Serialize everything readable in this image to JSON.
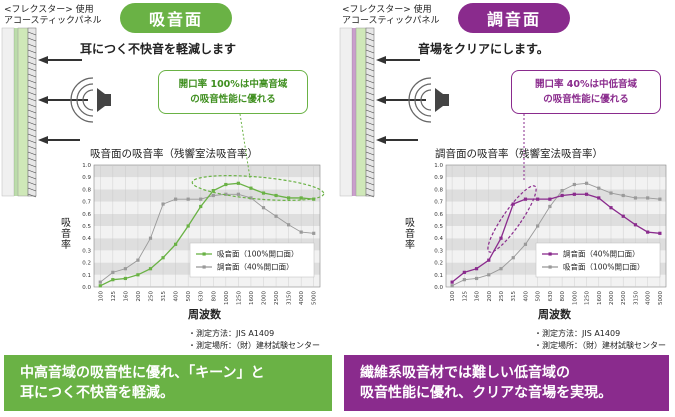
{
  "left": {
    "panel_label": "<フレクスター> 使用\nアコースティックパネル",
    "badge": "吸音面",
    "subhead": "耳につく不快音を軽減します",
    "callout": "開口率 100%は中高音域\nの吸音性能に優れる",
    "chart_title": "吸音面の吸音率（残響室法吸音率）",
    "ylabel": "吸音率",
    "xlabel": "周波数",
    "notes": [
      "・測定方法：JIS A1409",
      "・測定場所：（財）建材試験センター"
    ],
    "footer": "中高音域の吸音性に優れ、「キーン」と\n耳につく不快音を軽減。"
  },
  "right": {
    "panel_label": "<フレクスター> 使用\nアコースティックパネル",
    "badge": "調音面",
    "subhead": "音場をクリアにします。",
    "callout": "開口率 40%は中低音域\nの吸音性能に優れる",
    "chart_title": "調音面の吸音率（残響室法吸音率）",
    "ylabel": "吸音率",
    "xlabel": "周波数",
    "notes": [
      "・測定方法：JIS A1409",
      "・測定場所：（財）建材試験センター"
    ],
    "footer": "繊維系吸音材では難しい低音域の\n吸音性能に優れ、クリアな音場を実現。"
  },
  "colors": {
    "green": "#6ab245",
    "purple": "#8a2b8d",
    "gray": "#9a9a9a"
  },
  "chart_data": [
    {
      "type": "line",
      "title": "吸音面の吸音率（残響室法吸音率）",
      "xlabel": "周波数",
      "ylabel": "吸音率",
      "categories": [
        "100",
        "125",
        "160",
        "200",
        "250",
        "315",
        "400",
        "500",
        "630",
        "800",
        "1000",
        "1250",
        "1600",
        "2000",
        "2500",
        "3150",
        "4000",
        "5000"
      ],
      "ylim": [
        0,
        1.0
      ],
      "yticks": [
        "0.0",
        "0.1",
        "0.2",
        "0.3",
        "0.4",
        "0.5",
        "0.6",
        "0.7",
        "0.8",
        "0.9",
        "1.0"
      ],
      "grid": true,
      "legend_position": "bottom-right",
      "series": [
        {
          "name": "吸音面（100%開口面）",
          "color": "#6ab245",
          "values": [
            0.01,
            0.06,
            0.07,
            0.1,
            0.15,
            0.24,
            0.35,
            0.5,
            0.66,
            0.79,
            0.84,
            0.85,
            0.81,
            0.77,
            0.75,
            0.73,
            0.73,
            0.72
          ]
        },
        {
          "name": "調音面（40%開口面）",
          "color": "#9a9a9a",
          "values": [
            0.04,
            0.12,
            0.15,
            0.22,
            0.4,
            0.68,
            0.72,
            0.72,
            0.72,
            0.75,
            0.76,
            0.76,
            0.73,
            0.65,
            0.58,
            0.51,
            0.45,
            0.44
          ]
        }
      ]
    },
    {
      "type": "line",
      "title": "調音面の吸音率（残響室法吸音率）",
      "xlabel": "周波数",
      "ylabel": "吸音率",
      "categories": [
        "100",
        "125",
        "160",
        "200",
        "250",
        "315",
        "400",
        "500",
        "630",
        "800",
        "1000",
        "1250",
        "1600",
        "2000",
        "2500",
        "3150",
        "4000",
        "5000"
      ],
      "ylim": [
        0,
        1.0
      ],
      "yticks": [
        "0.0",
        "0.1",
        "0.2",
        "0.3",
        "0.4",
        "0.5",
        "0.6",
        "0.7",
        "0.8",
        "0.9",
        "1.0"
      ],
      "grid": true,
      "legend_position": "bottom-right",
      "series": [
        {
          "name": "調音面（40%開口面）",
          "color": "#8a2b8d",
          "values": [
            0.04,
            0.12,
            0.15,
            0.22,
            0.4,
            0.68,
            0.72,
            0.72,
            0.72,
            0.75,
            0.76,
            0.76,
            0.73,
            0.65,
            0.58,
            0.51,
            0.45,
            0.44
          ]
        },
        {
          "name": "吸音面（100%開口面）",
          "color": "#9a9a9a",
          "values": [
            0.01,
            0.06,
            0.07,
            0.1,
            0.15,
            0.24,
            0.35,
            0.5,
            0.66,
            0.79,
            0.84,
            0.85,
            0.81,
            0.77,
            0.75,
            0.73,
            0.73,
            0.72
          ]
        }
      ]
    }
  ]
}
